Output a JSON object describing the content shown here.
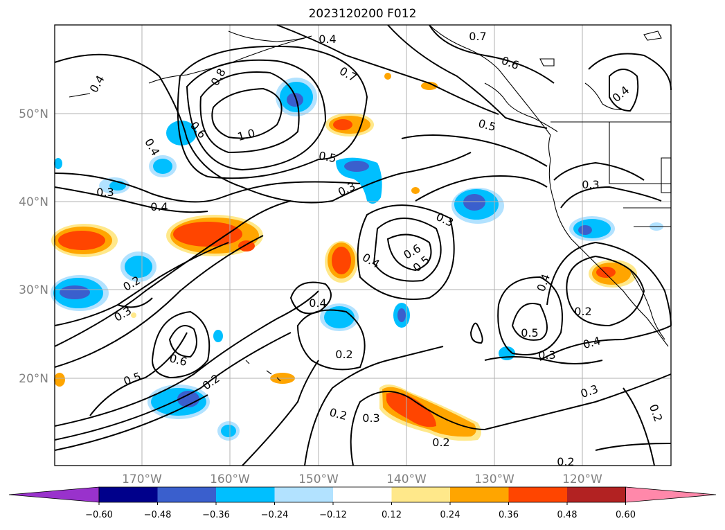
{
  "title": "2023120200 F012",
  "map": {
    "lat_labels": [
      "50°N",
      "40°N",
      "30°N",
      "20°N"
    ],
    "lon_labels": [
      "170°W",
      "160°W",
      "150°W",
      "140°W",
      "130°W",
      "120°W"
    ],
    "contour_labels": [
      "0.4",
      "0.8",
      "0.7",
      "0.7",
      "0.6",
      "0.4",
      "0.4",
      "0.5",
      "0.6",
      "1.0",
      "0.4",
      "0.5",
      "0.3",
      "0.3",
      "0.3",
      "0.4",
      "0.3",
      "0.6",
      "0.5",
      "0.4",
      "0.2",
      "0.4",
      "0.3",
      "0.2",
      "0.6",
      "0.5",
      "0.4",
      "0.2",
      "0.4",
      "0.5",
      "0.3",
      "0.2",
      "0.3",
      "0.2",
      "0.3",
      "0.2",
      "0.2",
      "0.2"
    ],
    "line_color": "#000000",
    "grid_color": "#b0b0b0"
  },
  "colorbar": {
    "tick_labels": [
      "−0.60",
      "−0.48",
      "−0.36",
      "−0.24",
      "−0.12",
      "0.12",
      "0.24",
      "0.36",
      "0.48",
      "0.60"
    ],
    "colors": [
      "#9932cc",
      "#00008b",
      "#3a5fcd",
      "#00bfff",
      "#b2e2ff",
      "#ffffff",
      "#ffe88a",
      "#ffa500",
      "#ff4500",
      "#b22222",
      "#ff88aa"
    ]
  }
}
